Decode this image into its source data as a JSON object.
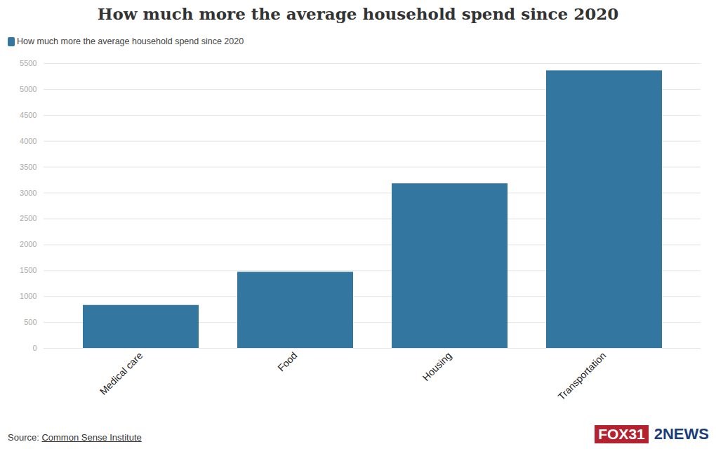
{
  "chart_data": {
    "type": "bar",
    "title": "How much more the average household spend since 2020",
    "categories": [
      "Medical care",
      "Food",
      "Housing",
      "Transportation"
    ],
    "series": [
      {
        "name": "How much more the average household spend since 2020",
        "color": "#33769f",
        "values": [
          830,
          1470,
          3180,
          5360
        ]
      }
    ],
    "ylim": [
      0,
      5500
    ],
    "yticks": [
      0,
      500,
      1000,
      1500,
      2000,
      2500,
      3000,
      3500,
      4000,
      4500,
      5000,
      5500
    ],
    "grid": true,
    "legend": "top-left",
    "source_label": "Source:",
    "source": "Common Sense Institute",
    "logos": [
      "FOX31",
      "2NEWS"
    ]
  }
}
